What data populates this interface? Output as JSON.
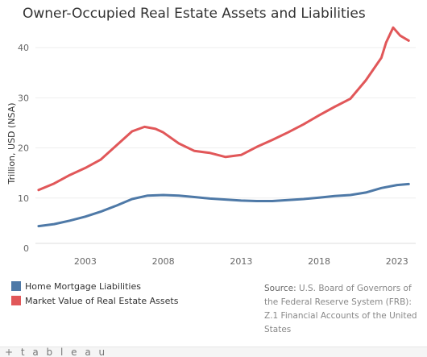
{
  "title": "Owner-Occupied Real Estate Assets and Liabilities",
  "source": {
    "label": "Source:",
    "text": "U.S. Board of Governors of the Federal Reserve System (FRB): Z.1 Financial Accounts of the United States"
  },
  "footer": {
    "logo_text": "+ t a b l e a u"
  },
  "colors": {
    "mortgage": "#4e79a7",
    "assets": "#e15759"
  },
  "chart_data": {
    "type": "line",
    "title": "Owner-Occupied Real Estate Assets and Liabilities",
    "xlabel": "",
    "ylabel": "Trillion, USD (NSA)",
    "xlim": [
      1999.8,
      2024.2
    ],
    "ylim": [
      0,
      45
    ],
    "x_ticks": [
      2003,
      2008,
      2013,
      2018,
      2023
    ],
    "y_ticks": [
      0,
      10,
      20,
      30,
      40
    ],
    "grid": true,
    "legend": "bottom-left",
    "series": [
      {
        "name": "Home Mortgage Liabilities",
        "color": "#4e79a7",
        "points": [
          [
            2000,
            4.4
          ],
          [
            2001,
            4.8
          ],
          [
            2002,
            5.5
          ],
          [
            2003,
            6.3
          ],
          [
            2004,
            7.3
          ],
          [
            2005,
            8.5
          ],
          [
            2006,
            9.8
          ],
          [
            2007,
            10.5
          ],
          [
            2008,
            10.6
          ],
          [
            2009,
            10.5
          ],
          [
            2010,
            10.2
          ],
          [
            2011,
            9.9
          ],
          [
            2012,
            9.7
          ],
          [
            2013,
            9.5
          ],
          [
            2014,
            9.4
          ],
          [
            2015,
            9.4
          ],
          [
            2016,
            9.6
          ],
          [
            2017,
            9.8
          ],
          [
            2018,
            10.1
          ],
          [
            2019,
            10.4
          ],
          [
            2020,
            10.6
          ],
          [
            2021,
            11.1
          ],
          [
            2022,
            12.0
          ],
          [
            2023,
            12.6
          ],
          [
            2023.75,
            12.8
          ]
        ]
      },
      {
        "name": "Market Value of Real Estate Assets",
        "color": "#e15759",
        "points": [
          [
            2000,
            11.6
          ],
          [
            2001,
            12.9
          ],
          [
            2002,
            14.6
          ],
          [
            2003,
            16.0
          ],
          [
            2004,
            17.7
          ],
          [
            2005,
            20.5
          ],
          [
            2006,
            23.3
          ],
          [
            2006.8,
            24.2
          ],
          [
            2007.5,
            23.8
          ],
          [
            2008,
            23.1
          ],
          [
            2009,
            20.9
          ],
          [
            2010,
            19.4
          ],
          [
            2011,
            19.0
          ],
          [
            2012,
            18.2
          ],
          [
            2013,
            18.6
          ],
          [
            2014,
            20.2
          ],
          [
            2015,
            21.6
          ],
          [
            2016,
            23.1
          ],
          [
            2017,
            24.7
          ],
          [
            2018,
            26.5
          ],
          [
            2019,
            28.2
          ],
          [
            2020,
            29.8
          ],
          [
            2021,
            33.5
          ],
          [
            2022,
            38.0
          ],
          [
            2022.3,
            41.0
          ],
          [
            2022.75,
            44.0
          ],
          [
            2023.2,
            42.4
          ],
          [
            2023.75,
            41.4
          ]
        ]
      }
    ]
  }
}
